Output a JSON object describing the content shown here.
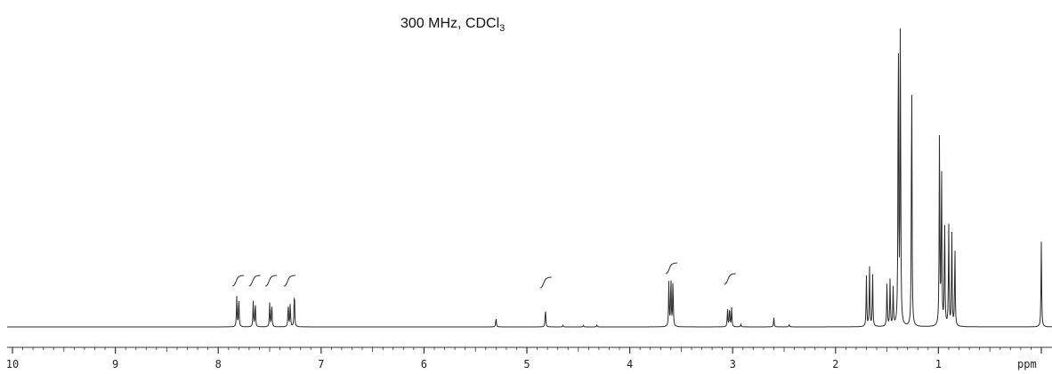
{
  "chart_data": {
    "type": "line",
    "title": "300 MHz, CDCl",
    "title_subscript": "3",
    "xlabel": "ppm",
    "ylabel": "",
    "x_reversed": true,
    "xlim": [
      10.0,
      -0.05
    ],
    "grid": false,
    "tick_labels": [
      "10",
      "9",
      "8",
      "7",
      "6",
      "5",
      "4",
      "3",
      "2",
      "1"
    ],
    "tick_values": [
      10,
      9,
      8,
      7,
      6,
      5,
      4,
      3,
      2,
      1
    ],
    "series": [
      {
        "peaks": [
          {
            "ppm": 7.82,
            "height": 0.095
          },
          {
            "ppm": 7.8,
            "height": 0.095
          },
          {
            "ppm": 7.66,
            "height": 0.08
          },
          {
            "ppm": 7.64,
            "height": 0.08
          },
          {
            "ppm": 7.5,
            "height": 0.075
          },
          {
            "ppm": 7.48,
            "height": 0.075
          },
          {
            "ppm": 7.32,
            "height": 0.075
          },
          {
            "ppm": 7.3,
            "height": 0.075
          },
          {
            "ppm": 7.26,
            "height": 0.12
          },
          {
            "ppm": 5.3,
            "height": 0.03
          },
          {
            "ppm": 4.82,
            "height": 0.06
          },
          {
            "ppm": 4.65,
            "height": 0.005
          },
          {
            "ppm": 4.45,
            "height": 0.005
          },
          {
            "ppm": 4.32,
            "height": 0.006
          },
          {
            "ppm": 3.62,
            "height": 0.14
          },
          {
            "ppm": 3.6,
            "height": 0.16
          },
          {
            "ppm": 3.58,
            "height": 0.15
          },
          {
            "ppm": 3.05,
            "height": 0.055
          },
          {
            "ppm": 3.03,
            "height": 0.065
          },
          {
            "ppm": 3.01,
            "height": 0.06
          },
          {
            "ppm": 2.92,
            "height": 0.008
          },
          {
            "ppm": 2.6,
            "height": 0.03
          },
          {
            "ppm": 2.45,
            "height": 0.008
          },
          {
            "ppm": 1.7,
            "height": 0.16
          },
          {
            "ppm": 1.67,
            "height": 0.19
          },
          {
            "ppm": 1.64,
            "height": 0.17
          },
          {
            "ppm": 1.5,
            "height": 0.14
          },
          {
            "ppm": 1.47,
            "height": 0.15
          },
          {
            "ppm": 1.44,
            "height": 0.12
          },
          {
            "ppm": 1.39,
            "height": 1.0
          },
          {
            "ppm": 1.37,
            "height": 1.0
          },
          {
            "ppm": 1.26,
            "height": 0.84
          },
          {
            "ppm": 0.99,
            "height": 0.6
          },
          {
            "ppm": 0.97,
            "height": 0.52
          },
          {
            "ppm": 0.94,
            "height": 0.36
          },
          {
            "ppm": 0.9,
            "height": 0.32
          },
          {
            "ppm": 0.87,
            "height": 0.3
          },
          {
            "ppm": 0.84,
            "height": 0.25
          },
          {
            "ppm": 0.0,
            "height": 0.27
          }
        ]
      }
    ],
    "integrals": [
      {
        "center_ppm": 7.81
      },
      {
        "center_ppm": 7.65
      },
      {
        "center_ppm": 7.49
      },
      {
        "center_ppm": 7.31
      },
      {
        "center_ppm": 4.82
      },
      {
        "center_ppm": 3.6
      },
      {
        "center_ppm": 3.03
      }
    ]
  }
}
